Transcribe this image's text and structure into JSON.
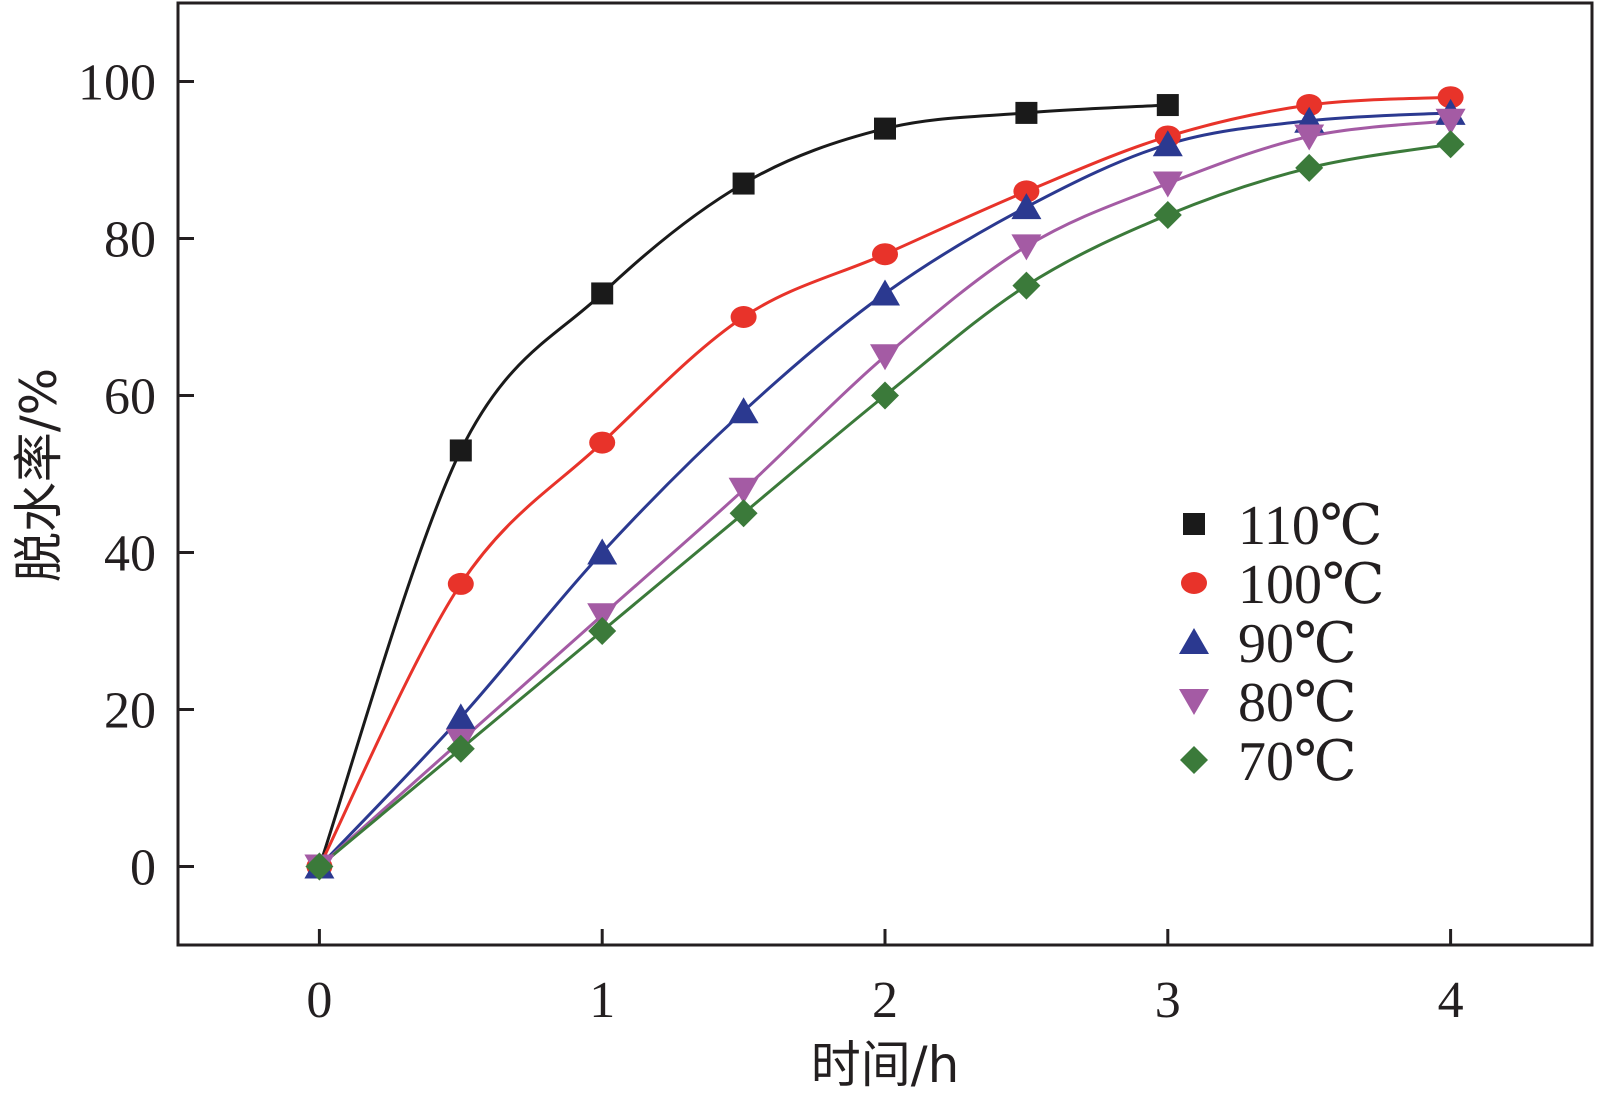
{
  "chart_data": {
    "type": "line",
    "title": "",
    "xlabel": "时间/h",
    "ylabel": "脱水率/%",
    "xlim": [
      -0.5,
      4.5
    ],
    "ylim": [
      -10,
      110
    ],
    "xticks": [
      0,
      1,
      2,
      3,
      4
    ],
    "xtick_labels": [
      "0",
      "1",
      "2",
      "3",
      "4"
    ],
    "yticks": [
      0,
      20,
      40,
      60,
      80,
      100
    ],
    "ytick_labels": [
      "0",
      "20",
      "40",
      "60",
      "80",
      "100"
    ],
    "grid": false,
    "legend_position": "right",
    "series": [
      {
        "name": "110℃",
        "color": "#1a1a1a",
        "marker": "square",
        "x": [
          0,
          0.5,
          1,
          1.5,
          2,
          2.5,
          3
        ],
        "values": [
          0,
          53,
          73,
          87,
          94,
          96,
          97
        ]
      },
      {
        "name": "100℃",
        "color": "#e8332a",
        "marker": "circle",
        "x": [
          0,
          0.5,
          1,
          1.5,
          2,
          2.5,
          3,
          3.5,
          4
        ],
        "values": [
          0,
          36,
          54,
          70,
          78,
          86,
          93,
          97,
          98
        ]
      },
      {
        "name": "90℃",
        "color": "#2b3990",
        "marker": "triangle-up",
        "x": [
          0,
          0.5,
          1,
          1.5,
          2,
          2.5,
          3,
          3.5,
          4
        ],
        "values": [
          0,
          19,
          40,
          58,
          73,
          84,
          92,
          95,
          96
        ]
      },
      {
        "name": "80℃",
        "color": "#a45ba4",
        "marker": "triangle-down",
        "x": [
          0,
          0.5,
          1,
          1.5,
          2,
          2.5,
          3,
          3.5,
          4
        ],
        "values": [
          0,
          16,
          32,
          48,
          65,
          79,
          87,
          93,
          95
        ]
      },
      {
        "name": "70℃",
        "color": "#3b7a3a",
        "marker": "diamond",
        "x": [
          0,
          0.5,
          1,
          1.5,
          2,
          2.5,
          3,
          3.5,
          4
        ],
        "values": [
          0,
          15,
          30,
          45,
          60,
          74,
          83,
          89,
          92
        ]
      }
    ]
  }
}
